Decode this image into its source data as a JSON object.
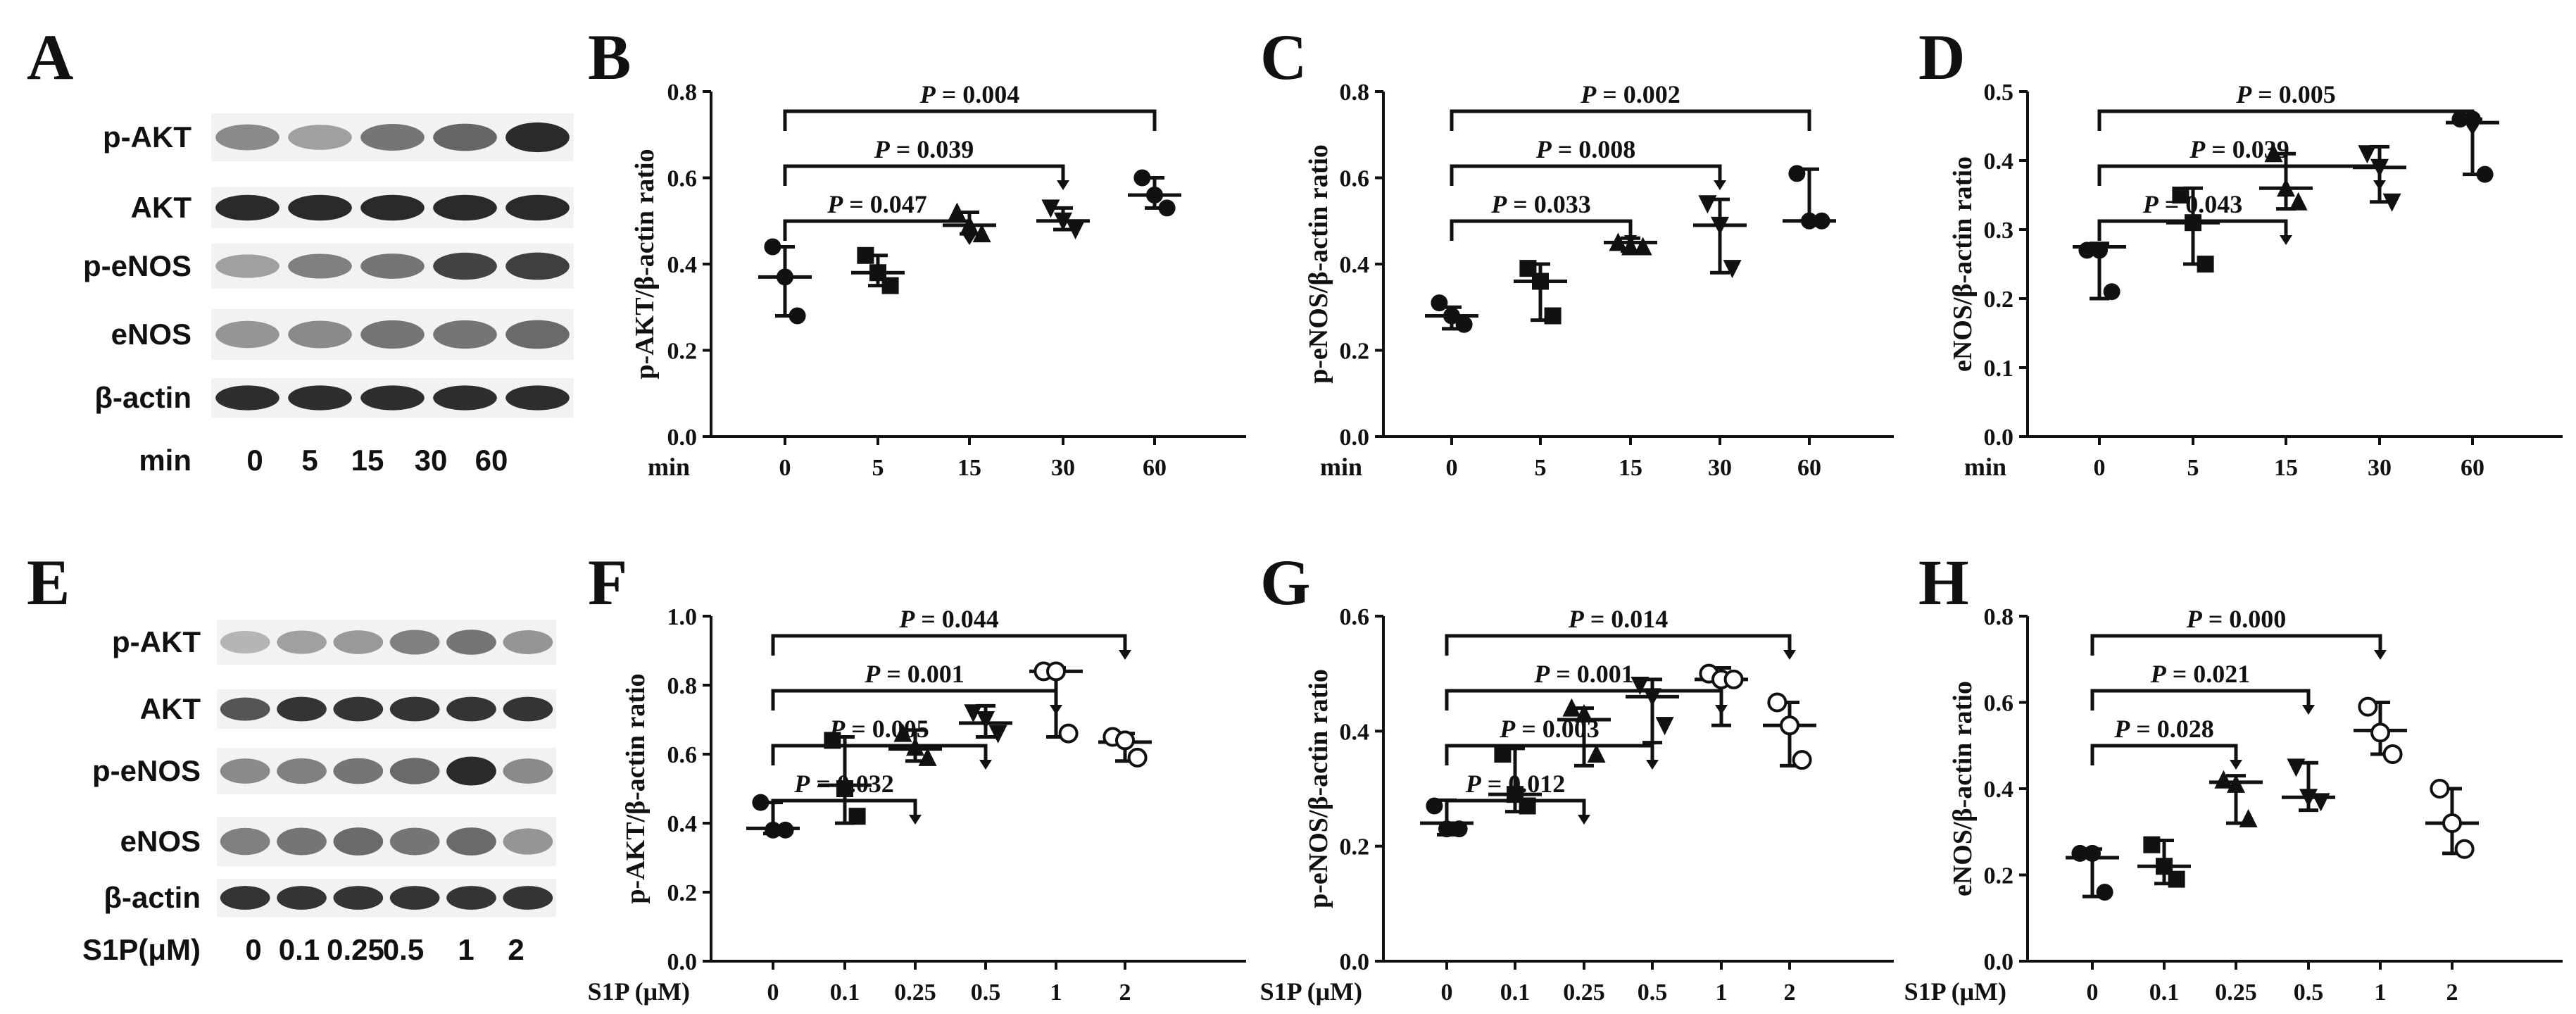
{
  "blots": [
    {
      "panel": "A",
      "lane_axis_label": "min",
      "lanes": [
        "0",
        "5",
        "15",
        "30",
        "60"
      ],
      "rows": [
        "p-AKT",
        "AKT",
        "p-eNOS",
        "eNOS",
        "β-actin"
      ],
      "intensity": [
        [
          0.45,
          0.35,
          0.55,
          0.62,
          0.9
        ],
        [
          0.9,
          0.9,
          0.9,
          0.9,
          0.9
        ],
        [
          0.35,
          0.5,
          0.55,
          0.78,
          0.8
        ],
        [
          0.4,
          0.45,
          0.55,
          0.55,
          0.6
        ],
        [
          0.88,
          0.88,
          0.88,
          0.88,
          0.88
        ]
      ]
    },
    {
      "panel": "E",
      "lane_axis_label": "S1P(μM)",
      "lanes": [
        "0",
        "0.1",
        "0.25",
        "0.5",
        "1",
        "2"
      ],
      "lane_label_text": [
        "0",
        "0.1",
        "0.25",
        "0.5",
        "1",
        "2"
      ],
      "rows": [
        "p-AKT",
        "AKT",
        "p-eNOS",
        "eNOS",
        "β-actin"
      ],
      "intensity": [
        [
          0.25,
          0.35,
          0.38,
          0.5,
          0.55,
          0.4
        ],
        [
          0.7,
          0.85,
          0.85,
          0.85,
          0.85,
          0.85
        ],
        [
          0.45,
          0.5,
          0.55,
          0.6,
          0.9,
          0.45
        ],
        [
          0.5,
          0.55,
          0.6,
          0.55,
          0.6,
          0.4
        ],
        [
          0.85,
          0.85,
          0.85,
          0.85,
          0.85,
          0.85
        ]
      ]
    }
  ],
  "chart_data": [
    {
      "panel": "B",
      "type": "scatter",
      "ylabel": "p-AKT/β-actin ratio",
      "xname": "min",
      "categories": [
        "0",
        "5",
        "15",
        "30",
        "60"
      ],
      "ylim": [
        0,
        0.8
      ],
      "yticks": [
        "0.0",
        "0.2",
        "0.4",
        "0.6",
        "0.8"
      ],
      "marker": "circle-filled",
      "points": [
        [
          0.44,
          0.37,
          0.28
        ],
        [
          0.42,
          0.38,
          0.35
        ],
        [
          0.52,
          0.49,
          0.47
        ],
        [
          0.53,
          0.5,
          0.48
        ],
        [
          0.6,
          0.56,
          0.53
        ]
      ],
      "mean": [
        0.37,
        0.38,
        0.49,
        0.5,
        0.56
      ],
      "err": [
        [
          0.28,
          0.44
        ],
        [
          0.35,
          0.42
        ],
        [
          0.47,
          0.52
        ],
        [
          0.48,
          0.53
        ],
        [
          0.53,
          0.6
        ]
      ],
      "comparisons": [
        {
          "from": 0,
          "to": 2,
          "P": "P",
          "text": " = 0.047",
          "arrow": true
        },
        {
          "from": 0,
          "to": 3,
          "P": "P",
          "text": " = 0.039",
          "arrow": true
        },
        {
          "from": 0,
          "to": 4,
          "P": "P",
          "text": " = 0.004",
          "arrow": false
        }
      ]
    },
    {
      "panel": "C",
      "type": "scatter",
      "ylabel": "p-eNOS/β-actin ratio",
      "xname": "min",
      "categories": [
        "0",
        "5",
        "15",
        "30",
        "60"
      ],
      "ylim": [
        0,
        0.8
      ],
      "yticks": [
        "0.0",
        "0.2",
        "0.4",
        "0.6",
        "0.8"
      ],
      "marker": "circle-filled",
      "points": [
        [
          0.31,
          0.28,
          0.26
        ],
        [
          0.39,
          0.36,
          0.28
        ],
        [
          0.45,
          0.44,
          0.44
        ],
        [
          0.54,
          0.49,
          0.39
        ],
        [
          0.61,
          0.5,
          0.5
        ]
      ],
      "mean": [
        0.28,
        0.36,
        0.45,
        0.49,
        0.5
      ],
      "err": [
        [
          0.25,
          0.3
        ],
        [
          0.27,
          0.4
        ],
        [
          0.43,
          0.46
        ],
        [
          0.38,
          0.55
        ],
        [
          0.5,
          0.62
        ]
      ],
      "comparisons": [
        {
          "from": 0,
          "to": 2,
          "P": "P",
          "text": " = 0.033",
          "arrow": true
        },
        {
          "from": 0,
          "to": 3,
          "P": "P",
          "text": " = 0.008",
          "arrow": true
        },
        {
          "from": 0,
          "to": 4,
          "P": "P",
          "text": " = 0.002",
          "arrow": false
        }
      ]
    },
    {
      "panel": "D",
      "type": "scatter",
      "ylabel": "eNOS/β-actin ratio",
      "xname": "min",
      "categories": [
        "0",
        "5",
        "15",
        "30",
        "60"
      ],
      "ylim": [
        0,
        0.5
      ],
      "yticks": [
        "0.0",
        "0.1",
        "0.2",
        "0.3",
        "0.4",
        "0.5"
      ],
      "marker": "circle-filled",
      "points": [
        [
          0.27,
          0.27,
          0.21
        ],
        [
          0.35,
          0.31,
          0.25
        ],
        [
          0.41,
          0.36,
          0.34
        ],
        [
          0.41,
          0.39,
          0.34
        ],
        [
          0.46,
          0.46,
          0.38
        ]
      ],
      "mean": [
        0.275,
        0.31,
        0.36,
        0.39,
        0.455
      ],
      "err": [
        [
          0.2,
          0.28
        ],
        [
          0.25,
          0.36
        ],
        [
          0.33,
          0.41
        ],
        [
          0.34,
          0.42
        ],
        [
          0.38,
          0.46
        ]
      ],
      "comparisons": [
        {
          "from": 0,
          "to": 2,
          "P": "P",
          "text": " = 0.043",
          "arrow": true
        },
        {
          "from": 0,
          "to": 3,
          "P": "P",
          "text": " = 0.039",
          "arrow": true
        },
        {
          "from": 0,
          "to": 4,
          "P": "P",
          "text": " = 0.005",
          "arrow": true
        }
      ]
    },
    {
      "panel": "F",
      "type": "scatter",
      "ylabel": "p-AKT/β-actin ratio",
      "xname": "S1P (μM)",
      "categories": [
        "0",
        "0.1",
        "0.25",
        "0.5",
        "1",
        "2"
      ],
      "ylim": [
        0,
        1.0
      ],
      "yticks": [
        "0.0",
        "0.2",
        "0.4",
        "0.6",
        "0.8",
        "1.0"
      ],
      "marker": "mixed",
      "points": [
        [
          0.46,
          0.38,
          0.38
        ],
        [
          0.64,
          0.5,
          0.42
        ],
        [
          0.66,
          0.62,
          0.59
        ],
        [
          0.72,
          0.7,
          0.66
        ],
        [
          0.84,
          0.84,
          0.66
        ],
        [
          0.65,
          0.64,
          0.59
        ]
      ],
      "mean": [
        0.385,
        0.51,
        0.615,
        0.69,
        0.84,
        0.635
      ],
      "err": [
        [
          0.37,
          0.46
        ],
        [
          0.4,
          0.65
        ],
        [
          0.58,
          0.67
        ],
        [
          0.65,
          0.74
        ],
        [
          0.65,
          0.85
        ],
        [
          0.58,
          0.66
        ]
      ],
      "comparisons": [
        {
          "from": 0,
          "to": 2,
          "P": "P",
          "text": " = 0.032",
          "arrow": true
        },
        {
          "from": 0,
          "to": 3,
          "P": "P",
          "text": " = 0.005",
          "arrow": true
        },
        {
          "from": 0,
          "to": 4,
          "P": "P",
          "text": " = 0.001",
          "arrow": true
        },
        {
          "from": 0,
          "to": 5,
          "P": "P",
          "text": " = 0.044",
          "arrow": true
        }
      ]
    },
    {
      "panel": "G",
      "type": "scatter",
      "ylabel": "p-eNOS/β-actin ratio",
      "xname": "S1P (μM)",
      "categories": [
        "0",
        "0.1",
        "0.25",
        "0.5",
        "1",
        "2"
      ],
      "ylim": [
        0,
        0.6
      ],
      "yticks": [
        "0.0",
        "0.2",
        "0.4",
        "0.6"
      ],
      "marker": "mixed",
      "points": [
        [
          0.27,
          0.23,
          0.23
        ],
        [
          0.36,
          0.29,
          0.27
        ],
        [
          0.44,
          0.43,
          0.36
        ],
        [
          0.48,
          0.46,
          0.41
        ],
        [
          0.5,
          0.49,
          0.49
        ],
        [
          0.45,
          0.41,
          0.35
        ]
      ],
      "mean": [
        0.24,
        0.29,
        0.42,
        0.46,
        0.49,
        0.41
      ],
      "err": [
        [
          0.22,
          0.28
        ],
        [
          0.26,
          0.37
        ],
        [
          0.34,
          0.44
        ],
        [
          0.38,
          0.49
        ],
        [
          0.41,
          0.51
        ],
        [
          0.34,
          0.45
        ]
      ],
      "comparisons": [
        {
          "from": 0,
          "to": 2,
          "P": "P",
          "text": " = 0.012",
          "arrow": true
        },
        {
          "from": 0,
          "to": 3,
          "P": "P",
          "text": " = 0.003",
          "arrow": true
        },
        {
          "from": 0,
          "to": 4,
          "P": "P",
          "text": " = 0.001",
          "arrow": true
        },
        {
          "from": 0,
          "to": 5,
          "P": "P",
          "text": " = 0.014",
          "arrow": true
        }
      ]
    },
    {
      "panel": "H",
      "type": "scatter",
      "ylabel": "eNOS/β-actin ratio",
      "xname": "S1P (μM)",
      "categories": [
        "0",
        "0.1",
        "0.25",
        "0.5",
        "1",
        "2"
      ],
      "ylim": [
        0,
        0.8
      ],
      "yticks": [
        "0.0",
        "0.2",
        "0.4",
        "0.6",
        "0.8"
      ],
      "marker": "mixed",
      "points": [
        [
          0.25,
          0.25,
          0.16
        ],
        [
          0.27,
          0.22,
          0.19
        ],
        [
          0.42,
          0.41,
          0.33
        ],
        [
          0.45,
          0.38,
          0.37
        ],
        [
          0.59,
          0.53,
          0.48
        ],
        [
          0.4,
          0.32,
          0.26
        ]
      ],
      "mean": [
        0.24,
        0.22,
        0.415,
        0.38,
        0.535,
        0.32
      ],
      "err": [
        [
          0.15,
          0.26
        ],
        [
          0.18,
          0.28
        ],
        [
          0.32,
          0.43
        ],
        [
          0.35,
          0.46
        ],
        [
          0.48,
          0.6
        ],
        [
          0.25,
          0.4
        ]
      ],
      "comparisons": [
        {
          "from": 0,
          "to": 2,
          "P": "P",
          "text": " = 0.028",
          "arrow": true
        },
        {
          "from": 0,
          "to": 3,
          "P": "P",
          "text": " = 0.021",
          "arrow": true
        },
        {
          "from": 0,
          "to": 4,
          "P": "P",
          "text": " = 0.000",
          "arrow": true
        }
      ]
    }
  ]
}
